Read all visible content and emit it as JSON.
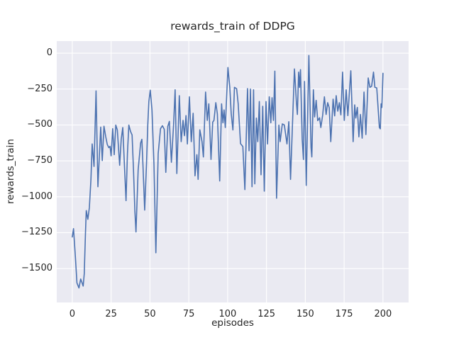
{
  "figure": {
    "title": "rewards_train of DDPG",
    "xlabel": "episodes",
    "ylabel": "rewards_train"
  },
  "chart_data": {
    "type": "line",
    "title": "rewards_train of DDPG",
    "xlabel": "episodes",
    "ylabel": "rewards_train",
    "grid": true,
    "legend_position": "none",
    "style": "seaborn-darkgrid",
    "figure_bg": "#ffffff",
    "plot_bg": "#eaeaf2",
    "grid_color": "#ffffff",
    "line_color": "#4c72b0",
    "text_color": "#262626",
    "xlim": [
      -10,
      216.5
    ],
    "ylim": [
      -1736,
      84
    ],
    "x_ticks": [
      {
        "v": 0,
        "label": "0"
      },
      {
        "v": 25,
        "label": "25"
      },
      {
        "v": 50,
        "label": "50"
      },
      {
        "v": 75,
        "label": "75"
      },
      {
        "v": 100,
        "label": "100"
      },
      {
        "v": 125,
        "label": "125"
      },
      {
        "v": 150,
        "label": "150"
      },
      {
        "v": 175,
        "label": "175"
      },
      {
        "v": 200,
        "label": "200"
      }
    ],
    "y_ticks": [
      {
        "v": 0,
        "label": "0"
      },
      {
        "v": -250,
        "label": "−250"
      },
      {
        "v": -500,
        "label": "−500"
      },
      {
        "v": -750,
        "label": "−750"
      },
      {
        "v": -1000,
        "label": "−1000"
      },
      {
        "v": -1250,
        "label": "−1250"
      },
      {
        "v": -1500,
        "label": "−1500"
      }
    ],
    "series": [
      {
        "name": "rewards_train",
        "points": [
          [
            0,
            -1280
          ],
          [
            0.8,
            -1222
          ],
          [
            2,
            -1420
          ],
          [
            3,
            -1600
          ],
          [
            4.3,
            -1635
          ],
          [
            5.4,
            -1573
          ],
          [
            6.3,
            -1599
          ],
          [
            7,
            -1622
          ],
          [
            7.7,
            -1537
          ],
          [
            8.5,
            -1250
          ],
          [
            9,
            -1096
          ],
          [
            10,
            -1157
          ],
          [
            11,
            -1075
          ],
          [
            12,
            -880
          ],
          [
            12.8,
            -632
          ],
          [
            14,
            -789
          ],
          [
            15.3,
            -263
          ],
          [
            16.5,
            -930
          ],
          [
            18.3,
            -515
          ],
          [
            19.3,
            -748
          ],
          [
            20.4,
            -509
          ],
          [
            21.5,
            -580
          ],
          [
            22.5,
            -635
          ],
          [
            23.5,
            -658
          ],
          [
            24.3,
            -649
          ],
          [
            25,
            -715
          ],
          [
            26,
            -526
          ],
          [
            27,
            -707
          ],
          [
            28,
            -501
          ],
          [
            29,
            -535
          ],
          [
            30.5,
            -781
          ],
          [
            31.5,
            -600
          ],
          [
            32.5,
            -518
          ],
          [
            33.5,
            -764
          ],
          [
            34.6,
            -1027
          ],
          [
            35.5,
            -700
          ],
          [
            36.4,
            -501
          ],
          [
            37.5,
            -545
          ],
          [
            38.5,
            -570
          ],
          [
            39.4,
            -813
          ],
          [
            40.3,
            -1100
          ],
          [
            41,
            -1245
          ],
          [
            42.4,
            -813
          ],
          [
            44,
            -625
          ],
          [
            44.8,
            -600
          ],
          [
            45.5,
            -781
          ],
          [
            46.6,
            -1093
          ],
          [
            47.8,
            -764
          ],
          [
            48.6,
            -500
          ],
          [
            49.3,
            -337
          ],
          [
            50.2,
            -258
          ],
          [
            51.3,
            -395
          ],
          [
            52.6,
            -781
          ],
          [
            53.8,
            -1390
          ],
          [
            55.3,
            -699
          ],
          [
            56.8,
            -526
          ],
          [
            58,
            -505
          ],
          [
            59.2,
            -530
          ],
          [
            60.2,
            -830
          ],
          [
            61.5,
            -509
          ],
          [
            62.5,
            -475
          ],
          [
            63.8,
            -760
          ],
          [
            65.2,
            -501
          ],
          [
            66.2,
            -255
          ],
          [
            67.3,
            -838
          ],
          [
            68.9,
            -296
          ],
          [
            70.1,
            -616
          ],
          [
            71.3,
            -468
          ],
          [
            72.2,
            -575
          ],
          [
            73.2,
            -435
          ],
          [
            74.1,
            -632
          ],
          [
            75.4,
            -304
          ],
          [
            76.6,
            -616
          ],
          [
            77.8,
            -419
          ],
          [
            79,
            -854
          ],
          [
            80.2,
            -707
          ],
          [
            81,
            -879
          ],
          [
            82.1,
            -534
          ],
          [
            83.5,
            -616
          ],
          [
            84.4,
            -723
          ],
          [
            85.8,
            -271
          ],
          [
            86.9,
            -468
          ],
          [
            87.9,
            -353
          ],
          [
            89.3,
            -740
          ],
          [
            90.4,
            -480
          ],
          [
            91.2,
            -468
          ],
          [
            92.4,
            -345
          ],
          [
            93.4,
            -424
          ],
          [
            94.9,
            -890
          ],
          [
            96.1,
            -353
          ],
          [
            97,
            -485
          ],
          [
            97.7,
            -395
          ],
          [
            98.5,
            -518
          ],
          [
            100.2,
            -100
          ],
          [
            101.4,
            -238
          ],
          [
            102.3,
            -420
          ],
          [
            103.4,
            -535
          ],
          [
            104.4,
            -238
          ],
          [
            105.8,
            -248
          ],
          [
            106.8,
            -353
          ],
          [
            108.3,
            -630
          ],
          [
            109.8,
            -650
          ],
          [
            111.1,
            -950
          ],
          [
            112.8,
            -247
          ],
          [
            113.8,
            -680
          ],
          [
            114.7,
            -250
          ],
          [
            115.7,
            -930
          ],
          [
            116.7,
            -255
          ],
          [
            117.5,
            -910
          ],
          [
            118.5,
            -452
          ],
          [
            119.4,
            -616
          ],
          [
            120.4,
            -337
          ],
          [
            121.5,
            -847
          ],
          [
            122.6,
            -370
          ],
          [
            123.6,
            -961
          ],
          [
            124.7,
            -337
          ],
          [
            125.7,
            -632
          ],
          [
            126.8,
            -304
          ],
          [
            127.8,
            -485
          ],
          [
            128.6,
            -310
          ],
          [
            129.5,
            -468
          ],
          [
            130.4,
            -125
          ],
          [
            131.5,
            -1010
          ],
          [
            133,
            -501
          ],
          [
            133.8,
            -616
          ],
          [
            135.2,
            -493
          ],
          [
            136.5,
            -500
          ],
          [
            138.2,
            -632
          ],
          [
            139.4,
            -477
          ],
          [
            140.5,
            -879
          ],
          [
            143,
            -110
          ],
          [
            144.3,
            -345
          ],
          [
            144.9,
            -427
          ],
          [
            145.7,
            -132
          ],
          [
            146.3,
            -238
          ],
          [
            146.9,
            -115
          ],
          [
            148,
            -600
          ],
          [
            148.8,
            -740
          ],
          [
            149.5,
            -197
          ],
          [
            150.6,
            -921
          ],
          [
            152.3,
            -16
          ],
          [
            153.7,
            -657
          ],
          [
            154.2,
            -723
          ],
          [
            155.2,
            -255
          ],
          [
            156,
            -444
          ],
          [
            157,
            -329
          ],
          [
            158,
            -470
          ],
          [
            159.2,
            -450
          ],
          [
            160,
            -518
          ],
          [
            161.2,
            -430
          ],
          [
            162.3,
            -304
          ],
          [
            163.4,
            -427
          ],
          [
            164.4,
            -345
          ],
          [
            165.4,
            -380
          ],
          [
            166.4,
            -616
          ],
          [
            167.9,
            -320
          ],
          [
            168.9,
            -437
          ],
          [
            169.9,
            -296
          ],
          [
            170.9,
            -404
          ],
          [
            171.9,
            -345
          ],
          [
            172.9,
            -430
          ],
          [
            174,
            -132
          ],
          [
            175.1,
            -468
          ],
          [
            176.3,
            -255
          ],
          [
            177.4,
            -435
          ],
          [
            179.3,
            -123
          ],
          [
            180.8,
            -616
          ],
          [
            181.8,
            -360
          ],
          [
            182.5,
            -452
          ],
          [
            183.5,
            -378
          ],
          [
            184.5,
            -583
          ],
          [
            185.5,
            -427
          ],
          [
            186.6,
            -592
          ],
          [
            187.8,
            -271
          ],
          [
            189,
            -567
          ],
          [
            190.5,
            -173
          ],
          [
            191.6,
            -238
          ],
          [
            192.7,
            -230
          ],
          [
            193.9,
            -132
          ],
          [
            194.8,
            -238
          ],
          [
            196,
            -242
          ],
          [
            197.7,
            -518
          ],
          [
            198.3,
            -527
          ],
          [
            198.8,
            -353
          ],
          [
            199.3,
            -378
          ],
          [
            200,
            -140
          ]
        ]
      }
    ]
  }
}
